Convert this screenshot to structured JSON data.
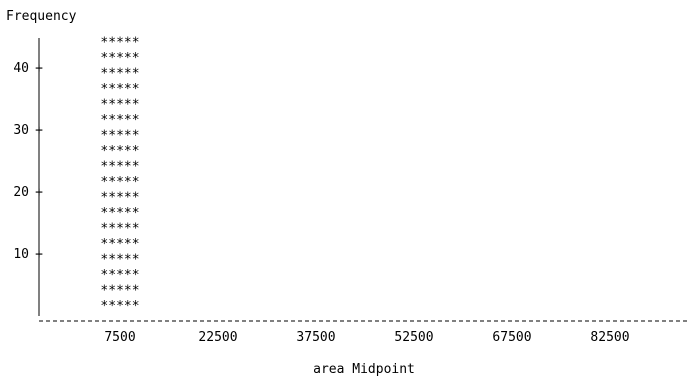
{
  "chart_data": {
    "type": "bar",
    "style": "ascii-text-histogram",
    "ylabel": "Frequency",
    "xlabel": "area Midpoint",
    "categories": [
      "7500",
      "22500",
      "37500",
      "52500",
      "67500",
      "82500"
    ],
    "values": [
      45,
      0,
      0,
      0,
      0,
      0
    ],
    "y_ticks": [
      "10",
      "20",
      "30",
      "40"
    ],
    "ylim": [
      0,
      45
    ],
    "grid": false,
    "legend": "none",
    "bar_glyph": "*****",
    "axis_color": "#000000"
  }
}
